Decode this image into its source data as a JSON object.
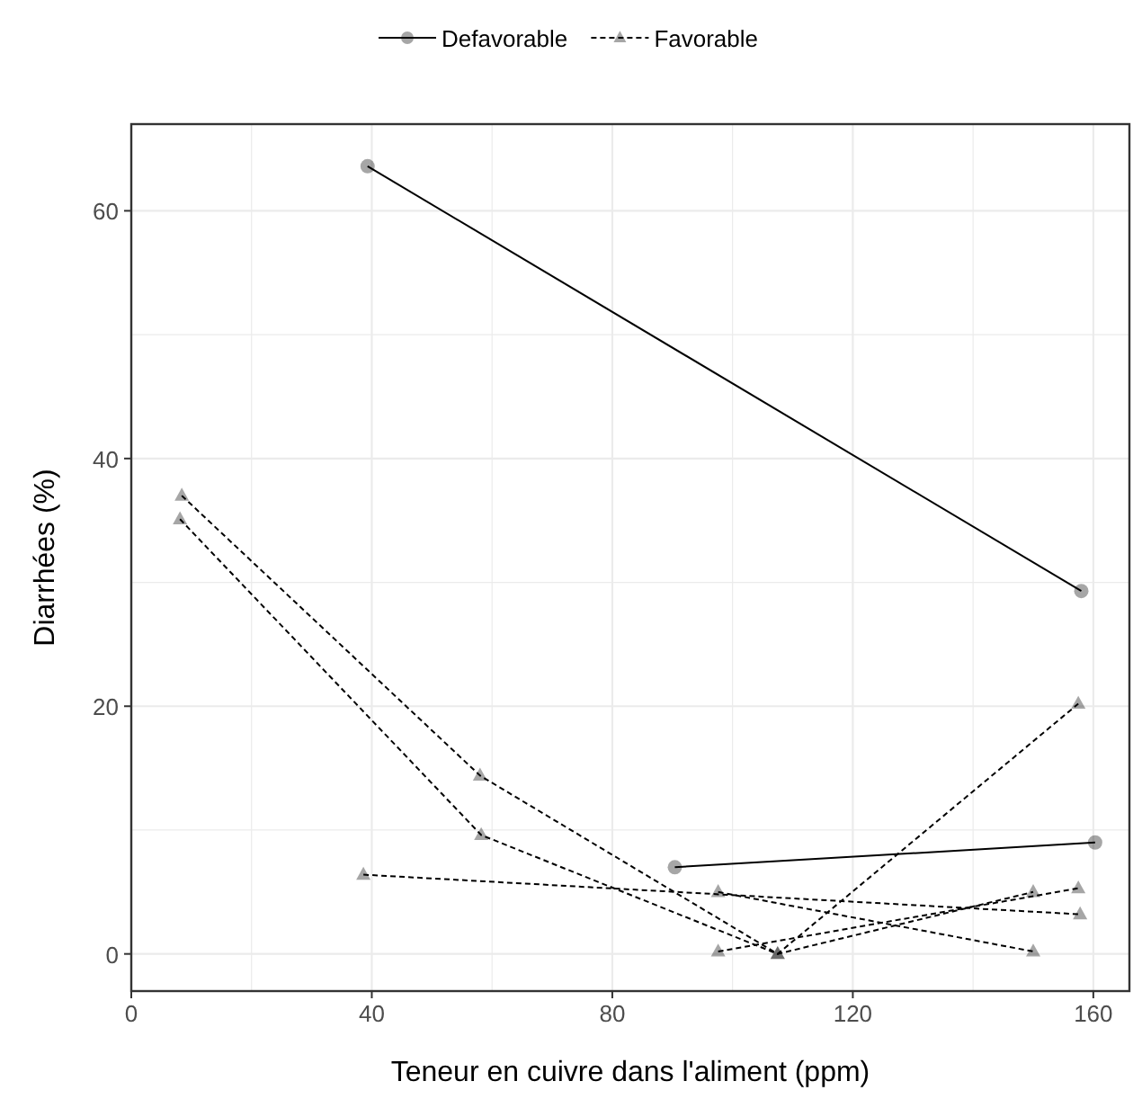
{
  "chart_data": {
    "type": "line",
    "xlabel": "Teneur en cuivre dans l'aliment (ppm)",
    "ylabel": "Diarrhées (%)",
    "xlim": [
      0,
      166
    ],
    "ylim": [
      -3,
      67
    ],
    "xticks": [
      0,
      40,
      80,
      120,
      160
    ],
    "yticks": [
      0,
      20,
      40,
      60
    ],
    "grid": true,
    "legend": "top",
    "series": [
      {
        "name": "Defavorable",
        "color": "#000000",
        "marker": "circle",
        "line_style": "solid",
        "x": [
          39.3,
          158
        ],
        "values": [
          63.6,
          29.3
        ]
      },
      {
        "color": "#000000",
        "marker": "circle",
        "line_style": "solid",
        "x": [
          90.4,
          160.3
        ],
        "values": [
          7.0,
          9.0
        ]
      },
      {
        "name": "Favorable",
        "color": "#000000",
        "marker": "triangle",
        "line_style": "dashed",
        "x": [
          8.4,
          58,
          107.5,
          157.5
        ],
        "values": [
          37,
          14.4,
          0,
          20.2
        ]
      },
      {
        "color": "#000000",
        "marker": "triangle",
        "line_style": "dashed",
        "x": [
          8.1,
          58.2,
          107.5,
          150
        ],
        "values": [
          35.1,
          9.6,
          0,
          5
        ]
      },
      {
        "color": "#000000",
        "marker": "triangle",
        "line_style": "dashed",
        "x": [
          38.6,
          157.8
        ],
        "values": [
          6.4,
          3.2
        ]
      },
      {
        "color": "#000000",
        "marker": "triangle",
        "line_style": "dashed",
        "x": [
          97.6,
          150
        ],
        "values": [
          5,
          0.2
        ]
      },
      {
        "color": "#000000",
        "marker": "triangle",
        "line_style": "dashed",
        "x": [
          97.6,
          157.5
        ],
        "values": [
          0.2,
          5.3
        ]
      }
    ]
  }
}
